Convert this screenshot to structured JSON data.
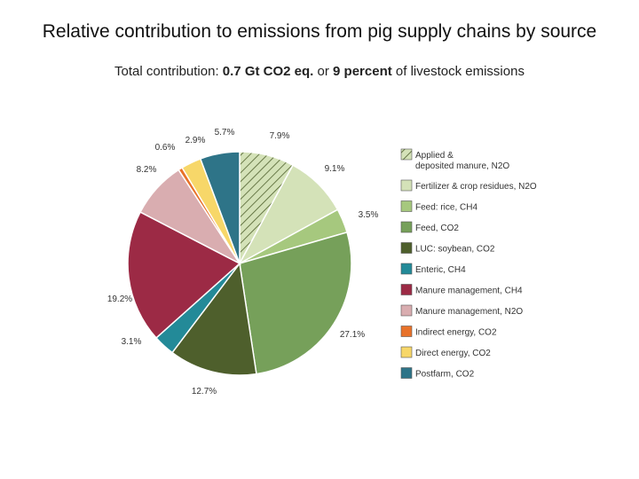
{
  "title": "Relative contribution to emissions from pig supply chains by source",
  "subtitle": {
    "prefix": "Total contribution: ",
    "amount": "0.7 Gt CO2 eq.",
    "middle": " or ",
    "percent": "9 percent",
    "suffix": " of livestock emissions"
  },
  "chart_data": {
    "type": "pie",
    "legend_position": "right",
    "slices": [
      {
        "label": "Applied & deposited manure, N2O",
        "legend_lines": [
          "Applied &",
          "deposited manure, N2O"
        ],
        "value": 7.9,
        "value_label": "7.9%",
        "color": "#d4e2b8",
        "hatched": true
      },
      {
        "label": "Fertilizer & crop residues, N2O",
        "legend_lines": [
          "Fertilizer & crop residues, N2O"
        ],
        "value": 9.1,
        "value_label": "9.1%",
        "color": "#d4e2b8",
        "hatched": false
      },
      {
        "label": "Feed: rice, CH4",
        "legend_lines": [
          "Feed: rice, CH4"
        ],
        "value": 3.5,
        "value_label": "3.5%",
        "color": "#a6c87e",
        "hatched": false
      },
      {
        "label": "Feed, CO2",
        "legend_lines": [
          "Feed, CO2"
        ],
        "value": 27.1,
        "value_label": "27.1%",
        "color": "#76a05a",
        "hatched": false
      },
      {
        "label": "LUC: soybean, CO2",
        "legend_lines": [
          "LUC: soybean, CO2"
        ],
        "value": 12.7,
        "value_label": "12.7%",
        "color": "#4e5f2c",
        "hatched": false
      },
      {
        "label": "Enteric, CH4",
        "legend_lines": [
          "Enteric, CH4"
        ],
        "value": 3.1,
        "value_label": "3.1%",
        "color": "#238a98",
        "hatched": false
      },
      {
        "label": "Manure management, CH4",
        "legend_lines": [
          "Manure management, CH4"
        ],
        "value": 19.2,
        "value_label": "19.2%",
        "color": "#9c2a45",
        "hatched": false
      },
      {
        "label": "Manure management, N2O",
        "legend_lines": [
          "Manure management, N2O"
        ],
        "value": 8.2,
        "value_label": "8.2%",
        "color": "#d9adb0",
        "hatched": false
      },
      {
        "label": "Indirect energy, CO2",
        "legend_lines": [
          "Indirect energy, CO2"
        ],
        "value": 0.6,
        "value_label": "0.6%",
        "color": "#e8722a",
        "hatched": false
      },
      {
        "label": "Direct energy, CO2",
        "legend_lines": [
          "Direct energy, CO2"
        ],
        "value": 2.9,
        "value_label": "2.9%",
        "color": "#f7d769",
        "hatched": false
      },
      {
        "label": "Postfarm, CO2",
        "legend_lines": [
          "Postfarm, CO2"
        ],
        "value": 5.7,
        "value_label": "5.7%",
        "color": "#2e7488",
        "hatched": false
      }
    ]
  }
}
